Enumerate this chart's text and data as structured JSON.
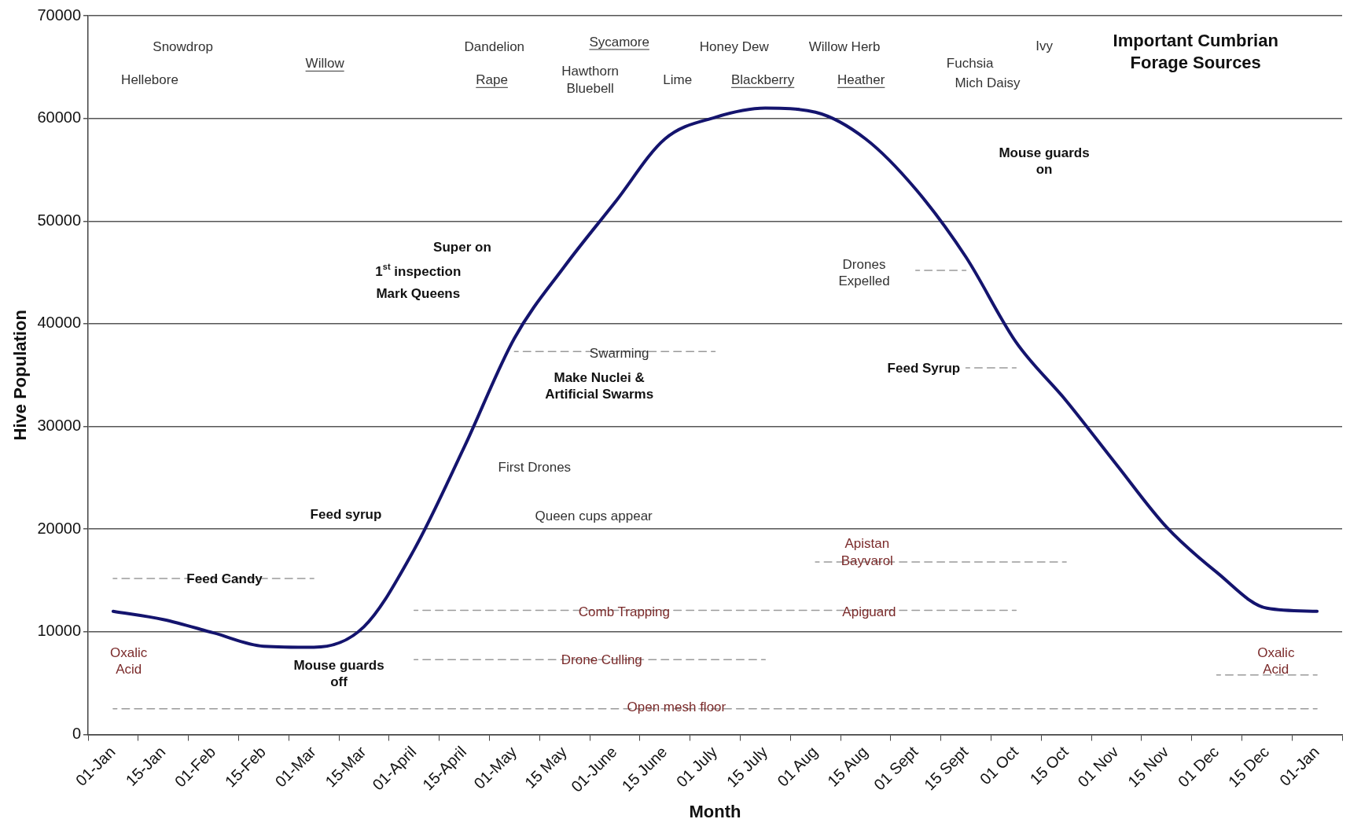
{
  "chart_data": {
    "type": "line",
    "xlabel": "Month",
    "ylabel": "Hive Population",
    "categories": [
      "01-Jan",
      "15-Jan",
      "01-Feb",
      "15-Feb",
      "01-Mar",
      "15-Mar",
      "01-April",
      "15-April",
      "01-May",
      "15 May",
      "01-June",
      "15 June",
      "01 July",
      "15 July",
      "01 Aug",
      "15 Aug",
      "01 Sept",
      "15 Sept",
      "01 Oct",
      "15 Oct",
      "01 Nov",
      "15 Nov",
      "01 Dec",
      "15 Dec",
      "01-Jan"
    ],
    "series": [
      {
        "color": "#14146e",
        "values": [
          12000,
          11200,
          9900,
          8600,
          8500,
          10500,
          18000,
          28000,
          38600,
          45600,
          51800,
          58000,
          60100,
          61000,
          60600,
          58000,
          53100,
          46500,
          38200,
          32500,
          26300,
          20200,
          15800,
          12300,
          12000
        ],
        "line_style": "solid"
      },
      {
        "color": "#9a9a9a",
        "values": [
          2500,
          2500,
          2500,
          2500,
          2500,
          2500,
          2500,
          2500,
          2500,
          2500,
          2500,
          2500,
          2500,
          2500,
          2500,
          2500,
          2500,
          2500,
          2500,
          2500,
          2500,
          2500,
          2500,
          2500,
          2500
        ],
        "line_style": "dashed"
      },
      {
        "color": "#9a9a9a",
        "values": [
          null,
          null,
          null,
          null,
          null,
          null,
          null,
          null,
          null,
          null,
          null,
          null,
          null,
          null,
          null,
          null,
          null,
          null,
          null,
          null,
          null,
          null,
          5800,
          5800,
          5800
        ],
        "line_style": "dashed"
      },
      {
        "color": "#9a9a9a",
        "values": [
          null,
          null,
          null,
          null,
          null,
          null,
          7300,
          7300,
          7300,
          7300,
          7300,
          7300,
          7300,
          7300,
          null,
          null,
          null,
          null,
          null,
          null,
          null,
          null,
          null,
          null,
          null
        ],
        "line_style": "dashed"
      },
      {
        "color": "#9a9a9a",
        "values": [
          null,
          null,
          null,
          null,
          null,
          null,
          12100,
          12100,
          12100,
          12100,
          12100,
          12100,
          12100,
          12100,
          12100,
          12100,
          12100,
          12100,
          12100,
          null,
          null,
          null,
          null,
          null,
          null
        ],
        "line_style": "dashed"
      },
      {
        "color": "#9a9a9a",
        "values": [
          null,
          null,
          null,
          null,
          null,
          null,
          null,
          null,
          null,
          null,
          null,
          null,
          null,
          null,
          16800,
          16800,
          16800,
          16800,
          16800,
          16800,
          null,
          null,
          null,
          null,
          null
        ],
        "line_style": "dashed"
      },
      {
        "color": "#9a9a9a",
        "values": [
          15200,
          15200,
          15200,
          15200,
          15200,
          null,
          null,
          null,
          null,
          null,
          null,
          null,
          null,
          null,
          null,
          null,
          null,
          null,
          null,
          null,
          null,
          null,
          null,
          null,
          null
        ],
        "line_style": "dashed"
      },
      {
        "color": "#9a9a9a",
        "values": [
          null,
          null,
          null,
          null,
          null,
          null,
          null,
          null,
          37300,
          37300,
          37300,
          37300,
          37300,
          null,
          null,
          null,
          null,
          null,
          null,
          null,
          null,
          null,
          null,
          null,
          null
        ],
        "line_style": "dashed"
      },
      {
        "color": "#9a9a9a",
        "values": [
          null,
          null,
          null,
          null,
          null,
          null,
          null,
          null,
          null,
          null,
          null,
          null,
          null,
          null,
          null,
          null,
          45200,
          45200,
          null,
          null,
          null,
          null,
          null,
          null,
          null
        ],
        "line_style": "dashed"
      },
      {
        "color": "#9a9a9a",
        "values": [
          null,
          null,
          null,
          null,
          null,
          null,
          null,
          null,
          null,
          null,
          null,
          null,
          null,
          null,
          null,
          null,
          null,
          35700,
          35700,
          null,
          null,
          null,
          null,
          null,
          null
        ],
        "line_style": "dashed"
      }
    ],
    "ylim": [
      0,
      70000
    ],
    "yticks": [
      0,
      10000,
      20000,
      30000,
      40000,
      50000,
      60000,
      70000
    ],
    "grid": "y",
    "marker": "none",
    "annotations": [
      "Snowdrop",
      "Hellebore",
      "Willow",
      "Dandelion",
      "Rape",
      "Sycamore",
      "Hawthorn\nBluebell",
      "Honey Dew",
      "Lime",
      "Blackberry",
      "Willow Herb",
      "Heather",
      "Fuchsia",
      "Mich Daisy",
      "Ivy",
      "Important Cumbrian\nForage Sources",
      "Mouse guards\non",
      "Super on",
      "1$^{st}$ inspection",
      "Mark Queens",
      "Drones\nExpelled",
      "Swarming",
      "Make Nuclei &\nArtificial Swarms",
      "Feed Syrup",
      "First Drones",
      "Feed syrup",
      "Queen cups appear",
      "Apistan\nBayvarol",
      "Feed Candy",
      "Comb Trapping",
      "Apiguard",
      "Oxalic\nAcid",
      "Drone Culling",
      "Mouse guards\noff",
      "Oxalic\nAcid",
      "Open mesh floor"
    ]
  }
}
